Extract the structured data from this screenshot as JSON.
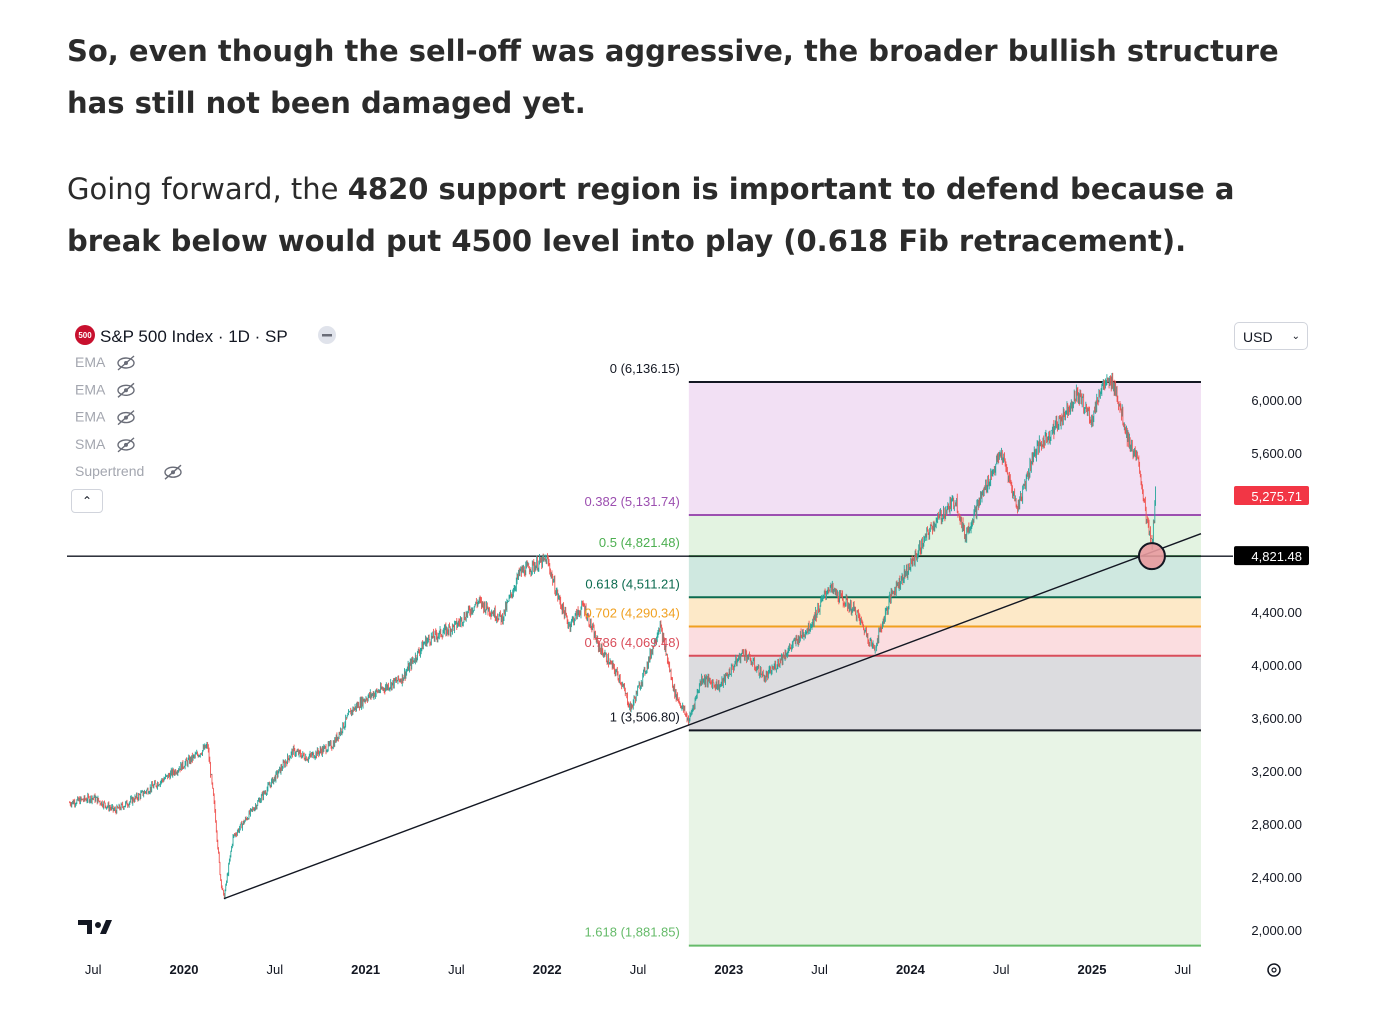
{
  "article": {
    "p1": "So, even though the sell-off was aggressive, the broader bullish structure has still not been damaged yet.",
    "p2_prefix": "Going forward, the ",
    "p2_bold": "4820 support region is important to defend because a break below would put 4500 level into play (0.618 Fib retracement)."
  },
  "chart_header": {
    "symbol_badge": "500",
    "title": "S&P 500 Index · 1D · SP",
    "indicators": [
      "EMA",
      "EMA",
      "EMA",
      "SMA",
      "Supertrend"
    ],
    "currency": "USD"
  },
  "colors": {
    "badge": "#c8102e",
    "fib_0": "#131722",
    "fib_0382": "#9c4fb0",
    "fib_05": "#4caf50",
    "fib_0618": "#0b6b4f",
    "fib_0702": "#f0a020",
    "fib_0786": "#d94d5a",
    "fib_1": "#131722",
    "fib_1618": "#66bb6a",
    "price_tag": "#f23645",
    "level_tag": "#000000"
  },
  "chart_data": {
    "type": "candlestick",
    "title": "S&P 500 Index · 1D · SP",
    "y_axis": {
      "ticks": [
        2000,
        2400,
        2800,
        3200,
        3600,
        4000,
        4400,
        5600,
        6000
      ],
      "tick_labels": [
        "2,000.00",
        "2,400.00",
        "2,800.00",
        "3,200.00",
        "3,600.00",
        "4,000.00",
        "4,400.00",
        "5,600.00",
        "6,000.00"
      ],
      "ylim": [
        1800,
        6250
      ]
    },
    "x_axis": {
      "ticks": [
        {
          "t": 2019.5,
          "label": "Jul",
          "bold": false
        },
        {
          "t": 2020.0,
          "label": "2020",
          "bold": true
        },
        {
          "t": 2020.5,
          "label": "Jul",
          "bold": false
        },
        {
          "t": 2021.0,
          "label": "2021",
          "bold": true
        },
        {
          "t": 2021.5,
          "label": "Jul",
          "bold": false
        },
        {
          "t": 2022.0,
          "label": "2022",
          "bold": true
        },
        {
          "t": 2022.5,
          "label": "Jul",
          "bold": false
        },
        {
          "t": 2023.0,
          "label": "2023",
          "bold": true
        },
        {
          "t": 2023.5,
          "label": "Jul",
          "bold": false
        },
        {
          "t": 2024.0,
          "label": "2024",
          "bold": true
        },
        {
          "t": 2024.5,
          "label": "Jul",
          "bold": false
        },
        {
          "t": 2025.0,
          "label": "2025",
          "bold": true
        },
        {
          "t": 2025.5,
          "label": "Jul",
          "bold": false
        }
      ],
      "xlim": [
        2019.36,
        2025.99
      ]
    },
    "price_path": [
      [
        2019.37,
        2960
      ],
      [
        2019.5,
        3000
      ],
      [
        2019.62,
        2900
      ],
      [
        2019.75,
        3010
      ],
      [
        2019.9,
        3150
      ],
      [
        2020.08,
        3330
      ],
      [
        2020.13,
        3390
      ],
      [
        2020.17,
        2900
      ],
      [
        2020.2,
        2400
      ],
      [
        2020.22,
        2237
      ],
      [
        2020.27,
        2700
      ],
      [
        2020.4,
        2950
      ],
      [
        2020.5,
        3150
      ],
      [
        2020.6,
        3350
      ],
      [
        2020.68,
        3300
      ],
      [
        2020.82,
        3400
      ],
      [
        2020.92,
        3650
      ],
      [
        2021.0,
        3750
      ],
      [
        2021.2,
        3900
      ],
      [
        2021.33,
        4180
      ],
      [
        2021.5,
        4300
      ],
      [
        2021.62,
        4480
      ],
      [
        2021.75,
        4350
      ],
      [
        2021.85,
        4700
      ],
      [
        2022.0,
        4796
      ],
      [
        2022.05,
        4550
      ],
      [
        2022.12,
        4300
      ],
      [
        2022.2,
        4450
      ],
      [
        2022.28,
        4150
      ],
      [
        2022.4,
        3900
      ],
      [
        2022.46,
        3666
      ],
      [
        2022.55,
        4000
      ],
      [
        2022.62,
        4305
      ],
      [
        2022.7,
        3800
      ],
      [
        2022.78,
        3577
      ],
      [
        2022.85,
        3900
      ],
      [
        2022.95,
        3840
      ],
      [
        2023.08,
        4100
      ],
      [
        2023.2,
        3900
      ],
      [
        2023.35,
        4150
      ],
      [
        2023.45,
        4300
      ],
      [
        2023.55,
        4590
      ],
      [
        2023.7,
        4400
      ],
      [
        2023.8,
        4117
      ],
      [
        2023.9,
        4550
      ],
      [
        2024.0,
        4750
      ],
      [
        2024.12,
        5050
      ],
      [
        2024.25,
        5250
      ],
      [
        2024.3,
        4970
      ],
      [
        2024.4,
        5300
      ],
      [
        2024.5,
        5600
      ],
      [
        2024.59,
        5186
      ],
      [
        2024.68,
        5600
      ],
      [
        2024.8,
        5800
      ],
      [
        2024.92,
        6050
      ],
      [
        2025.0,
        5850
      ],
      [
        2025.05,
        6100
      ],
      [
        2025.12,
        6136
      ],
      [
        2025.2,
        5700
      ],
      [
        2025.26,
        5500
      ],
      [
        2025.3,
        5100
      ],
      [
        2025.33,
        4900
      ],
      [
        2025.35,
        5270
      ]
    ],
    "last_price": "5,275.71",
    "fib_levels": [
      {
        "ratio": "0",
        "value": "6,136.15",
        "price": 6136.15,
        "label": "0 (6,136.15)"
      },
      {
        "ratio": "0.382",
        "value": "5,131.74",
        "price": 5131.74,
        "label": "0.382 (5,131.74)"
      },
      {
        "ratio": "0.5",
        "value": "4,821.48",
        "price": 4821.48,
        "label": "0.5 (4,821.48)"
      },
      {
        "ratio": "0.618",
        "value": "4,511.21",
        "price": 4511.21,
        "label": "0.618 (4,511.21)"
      },
      {
        "ratio": "0.702",
        "value": "4,290.34",
        "price": 4290.34,
        "label": "0.702 (4,290.34)"
      },
      {
        "ratio": "0.786",
        "value": "4,069.48",
        "price": 4069.48,
        "label": "0.786 (4,069.48)"
      },
      {
        "ratio": "1",
        "value": "3,506.80",
        "price": 3506.8,
        "label": "1 (3,506.80)"
      },
      {
        "ratio": "1.618",
        "value": "1,881.85",
        "price": 1881.85,
        "label": "1.618 (1,881.85)"
      }
    ],
    "horizontal_line": {
      "price": 4821.48,
      "label": "4,821.48"
    },
    "trendline": [
      [
        2020.22,
        2237
      ],
      [
        2025.6,
        4991
      ]
    ],
    "fib_range_x": [
      2022.78,
      2025.6
    ],
    "highlight_circle": [
      2025.33,
      4821.48
    ]
  }
}
